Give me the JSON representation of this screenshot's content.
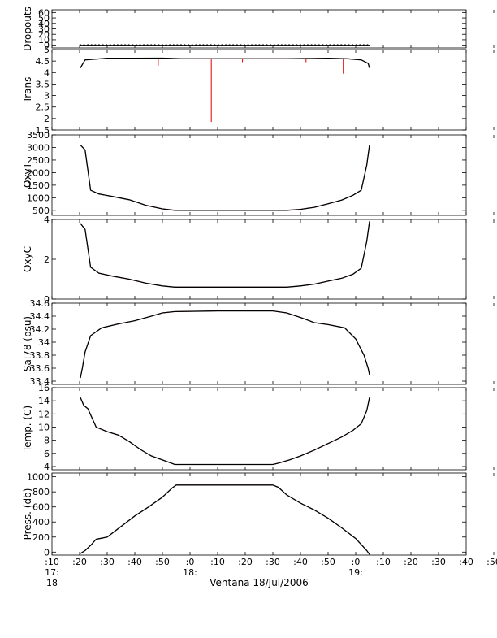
{
  "figure": {
    "xlabel": "Ventana 18/Jul/2006",
    "x_ticks": [
      {
        "label": ":10",
        "hour": "17:",
        "day": "18"
      },
      {
        "label": ":20"
      },
      {
        "label": ":30"
      },
      {
        "label": ":40"
      },
      {
        "label": ":50"
      },
      {
        "label": ":0",
        "hour": "18:"
      },
      {
        "label": ":10"
      },
      {
        "label": ":20"
      },
      {
        "label": ":30"
      },
      {
        "label": ":40"
      },
      {
        "label": ":50"
      },
      {
        "label": ":0",
        "hour": "19:"
      },
      {
        "label": ":10"
      },
      {
        "label": ":20"
      },
      {
        "label": ":30"
      },
      {
        "label": ":40"
      },
      {
        "label": ":50"
      }
    ]
  },
  "chart_data": [
    {
      "type": "scatter",
      "ylabel": "Dropouts",
      "ylim": [
        -5,
        65
      ],
      "yticks": [
        0,
        10,
        20,
        30,
        40,
        50,
        60
      ],
      "x_minutes": [
        20.3,
        72.5,
        125.0
      ],
      "y": [
        0,
        0,
        0
      ],
      "series": [
        {
          "name": "",
          "values": [
            0,
            0,
            0
          ]
        }
      ]
    },
    {
      "type": "line",
      "ylabel": "Trans",
      "ylim": [
        1.5,
        5.0
      ],
      "yticks": [
        1.5,
        2.0,
        2.5,
        3.0,
        3.5,
        4.0,
        4.5,
        5.0
      ],
      "x_minutes": [
        20.3,
        21,
        22,
        30,
        40,
        50,
        57,
        72,
        90,
        95,
        110,
        117,
        122,
        124.5,
        125
      ],
      "y": [
        4.2,
        4.35,
        4.55,
        4.62,
        4.62,
        4.63,
        4.6,
        4.6,
        4.6,
        4.6,
        4.62,
        4.6,
        4.55,
        4.4,
        4.2
      ],
      "spikes": [
        {
          "x_minutes": 48.5,
          "y": 4.3
        },
        {
          "x_minutes": 67.7,
          "y": 1.85
        },
        {
          "x_minutes": 79.0,
          "y": 4.45
        },
        {
          "x_minutes": 102.0,
          "y": 4.45
        },
        {
          "x_minutes": 115.5,
          "y": 3.95
        }
      ]
    },
    {
      "type": "line",
      "ylabel": "OxyT",
      "ylim": [
        300,
        3500
      ],
      "yticks": [
        500,
        1000,
        1500,
        2000,
        2500,
        3000,
        3500
      ],
      "x_minutes": [
        20.3,
        22,
        24,
        27,
        32,
        38,
        44,
        50,
        54.5,
        70,
        90,
        95,
        100,
        105,
        110,
        115,
        119,
        122,
        124,
        125
      ],
      "y": [
        3100,
        2900,
        1300,
        1150,
        1050,
        920,
        700,
        560,
        500,
        500,
        500,
        500,
        540,
        620,
        760,
        910,
        1100,
        1300,
        2300,
        3100
      ]
    },
    {
      "type": "line",
      "ylabel": "OxyC",
      "ylim": [
        0,
        4.0
      ],
      "yticks": [
        0,
        2,
        4
      ],
      "x_minutes": [
        20.3,
        22,
        24,
        27,
        32,
        38,
        44,
        50,
        54.5,
        70,
        90,
        95,
        100,
        105,
        110,
        115,
        119,
        122,
        124,
        125
      ],
      "y": [
        3.8,
        3.5,
        1.6,
        1.3,
        1.15,
        1.0,
        0.8,
        0.66,
        0.6,
        0.6,
        0.6,
        0.6,
        0.66,
        0.75,
        0.9,
        1.05,
        1.25,
        1.55,
        2.9,
        3.9
      ]
    },
    {
      "type": "line",
      "ylabel": "Sal78 (psu)",
      "ylim": [
        33.35,
        34.6
      ],
      "yticks": [
        33.4,
        33.6,
        33.8,
        34.0,
        34.2,
        34.4,
        34.6
      ],
      "x_minutes": [
        20.3,
        21,
        22,
        24,
        28,
        34,
        40,
        46,
        50,
        54.5,
        70,
        90,
        95,
        100,
        105,
        110,
        116,
        120,
        123,
        124.5,
        125
      ],
      "y": [
        33.45,
        33.6,
        33.85,
        34.1,
        34.22,
        34.28,
        34.33,
        34.4,
        34.45,
        34.47,
        34.48,
        34.48,
        34.45,
        34.38,
        34.3,
        34.27,
        34.22,
        34.05,
        33.8,
        33.6,
        33.5
      ]
    },
    {
      "type": "line",
      "ylabel": "Temp. (C)",
      "ylim": [
        3.5,
        16
      ],
      "yticks": [
        4,
        6,
        8,
        10,
        12,
        14,
        16
      ],
      "x_minutes": [
        20.3,
        21.5,
        23,
        26,
        30,
        34,
        38,
        42,
        46,
        50,
        54.5,
        70,
        90,
        92,
        96,
        100,
        105,
        110,
        115,
        119,
        122,
        124,
        125
      ],
      "y": [
        14.5,
        13.3,
        12.8,
        10.0,
        9.3,
        8.8,
        7.8,
        6.6,
        5.6,
        5.0,
        4.3,
        4.3,
        4.3,
        4.5,
        5.0,
        5.6,
        6.5,
        7.5,
        8.5,
        9.5,
        10.5,
        12.5,
        14.5
      ]
    },
    {
      "type": "line",
      "ylabel": "Press. (db)",
      "ylim": [
        -40,
        1050
      ],
      "yticks": [
        0,
        200,
        400,
        600,
        800,
        1000
      ],
      "x_minutes": [
        20.3,
        22,
        24,
        26,
        28,
        30,
        35,
        40,
        45,
        50,
        53.5,
        55,
        70,
        90,
        92,
        95,
        100,
        105,
        110,
        115,
        120,
        124,
        125
      ],
      "y": [
        -20,
        20,
        90,
        170,
        185,
        200,
        340,
        480,
        600,
        730,
        850,
        890,
        890,
        890,
        860,
        760,
        650,
        560,
        450,
        320,
        180,
        20,
        -30
      ]
    }
  ]
}
